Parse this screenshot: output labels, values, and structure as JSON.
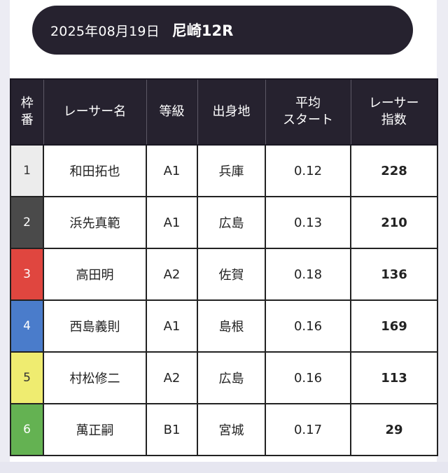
{
  "header": {
    "date": "2025年08月19日",
    "venue_race": "尼崎12R"
  },
  "table": {
    "columns": {
      "frame": [
        "枠",
        "番"
      ],
      "racer_name": [
        "レーサー名"
      ],
      "class": [
        "等級"
      ],
      "origin": [
        "出身地"
      ],
      "avg_start": [
        "平均",
        "スタート"
      ],
      "racer_index": [
        "レーサー",
        "指数"
      ]
    },
    "rows": [
      {
        "frame": "1",
        "frame_color": "#ececec",
        "frame_text_color": "#333333",
        "name": "和田拓也",
        "class": "A1",
        "origin": "兵庫",
        "avg_start": "0.12",
        "index": "228"
      },
      {
        "frame": "2",
        "frame_color": "#4a4a4a",
        "frame_text_color": "#ffffff",
        "name": "浜先真範",
        "class": "A1",
        "origin": "広島",
        "avg_start": "0.13",
        "index": "210"
      },
      {
        "frame": "3",
        "frame_color": "#e0463f",
        "frame_text_color": "#ffffff",
        "name": "高田明",
        "class": "A2",
        "origin": "佐賀",
        "avg_start": "0.18",
        "index": "136"
      },
      {
        "frame": "4",
        "frame_color": "#4a7ccb",
        "frame_text_color": "#ffffff",
        "name": "西島義則",
        "class": "A1",
        "origin": "島根",
        "avg_start": "0.16",
        "index": "169"
      },
      {
        "frame": "5",
        "frame_color": "#efec70",
        "frame_text_color": "#333333",
        "name": "村松修二",
        "class": "A2",
        "origin": "広島",
        "avg_start": "0.16",
        "index": "113"
      },
      {
        "frame": "6",
        "frame_color": "#64b252",
        "frame_text_color": "#ffffff",
        "name": "萬正嗣",
        "class": "B1",
        "origin": "宮城",
        "avg_start": "0.17",
        "index": "29"
      }
    ]
  },
  "colors": {
    "header_bg": "#26222f",
    "side_bg": "#ececf3"
  }
}
